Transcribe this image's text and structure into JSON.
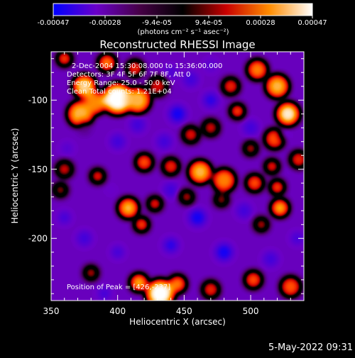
{
  "chart_data": {
    "type": "heatmap",
    "title": "Reconstructed RHESSI Image",
    "xlabel": "Heliocentric X (arcsec)",
    "ylabel": "Heliocentric Y (arcsec)",
    "x_ticks": [
      "350",
      "400",
      "450",
      "500"
    ],
    "y_ticks": [
      "-100",
      "-150",
      "-200"
    ],
    "xlim": [
      350,
      540
    ],
    "ylim": [
      -245,
      -65
    ],
    "colorbar": {
      "ticks": [
        "-0.00047",
        "-0.00028",
        "-9.4e-05",
        "9.4e-05",
        "0.00028",
        "0.00047"
      ],
      "unit_label": "(photons cm⁻² s⁻¹ asec⁻²)",
      "range": [
        -0.00047,
        0.00047
      ],
      "colors": [
        "#0000ff",
        "#6a00c8",
        "#460046",
        "#000000",
        "#c80000",
        "#ff8c00",
        "#ffffff"
      ]
    },
    "annotations": {
      "time": "2-Dec-2004 15:30:08.000 to 15:36:00.000",
      "detectors": "Detectors: 3F 4F 5F 6F 7F 8F, Att 0",
      "energy": "Energy Range: 25.0 - 50.0 keV",
      "clean": "Clean    Total counts: 1.21E+04",
      "peak": "Position of Peak = [426,-237]"
    },
    "peak": [
      426,
      -237
    ],
    "blobs": [
      {
        "x": 375,
        "y": -90,
        "r": 8,
        "v": 0.00043
      },
      {
        "x": 372,
        "y": -110,
        "r": 9,
        "v": 0.0004
      },
      {
        "x": 383,
        "y": -102,
        "r": 8,
        "v": 0.00036
      },
      {
        "x": 400,
        "y": -99,
        "r": 11,
        "v": 0.00047
      },
      {
        "x": 415,
        "y": -100,
        "r": 9,
        "v": 0.0004
      },
      {
        "x": 430,
        "y": -90,
        "r": 7,
        "v": 0.0002
      },
      {
        "x": 392,
        "y": -73,
        "r": 6,
        "v": 0.00035
      },
      {
        "x": 413,
        "y": -77,
        "r": 6,
        "v": 0.00025
      },
      {
        "x": 360,
        "y": -70,
        "r": 5,
        "v": 0.0003
      },
      {
        "x": 505,
        "y": -78,
        "r": 7,
        "v": 0.00035
      },
      {
        "x": 520,
        "y": -90,
        "r": 8,
        "v": 0.0004
      },
      {
        "x": 528,
        "y": -110,
        "r": 8,
        "v": 0.00045
      },
      {
        "x": 518,
        "y": -128,
        "r": 7,
        "v": 0.0003
      },
      {
        "x": 536,
        "y": -143,
        "r": 6,
        "v": 0.00025
      },
      {
        "x": 490,
        "y": -108,
        "r": 5,
        "v": 0.0003
      },
      {
        "x": 485,
        "y": -90,
        "r": 6,
        "v": 0.00025
      },
      {
        "x": 470,
        "y": -120,
        "r": 6,
        "v": 0.0002
      },
      {
        "x": 455,
        "y": -125,
        "r": 6,
        "v": 0.00022
      },
      {
        "x": 500,
        "y": -135,
        "r": 5,
        "v": 0.0002
      },
      {
        "x": 420,
        "y": -145,
        "r": 6,
        "v": 0.0003
      },
      {
        "x": 440,
        "y": -148,
        "r": 6,
        "v": 0.00025
      },
      {
        "x": 462,
        "y": -152,
        "r": 8,
        "v": 0.0004
      },
      {
        "x": 480,
        "y": -158,
        "r": 8,
        "v": 0.00035
      },
      {
        "x": 503,
        "y": -160,
        "r": 6,
        "v": 0.0003
      },
      {
        "x": 516,
        "y": -148,
        "r": 5,
        "v": 0.00025
      },
      {
        "x": 452,
        "y": -170,
        "r": 5,
        "v": 0.0002
      },
      {
        "x": 478,
        "y": -172,
        "r": 5,
        "v": 0.00018
      },
      {
        "x": 385,
        "y": -155,
        "r": 5,
        "v": 0.00025
      },
      {
        "x": 360,
        "y": -150,
        "r": 6,
        "v": 0.0002
      },
      {
        "x": 357,
        "y": -165,
        "r": 5,
        "v": 0.00018
      },
      {
        "x": 408,
        "y": -178,
        "r": 7,
        "v": 0.0004
      },
      {
        "x": 428,
        "y": -175,
        "r": 5,
        "v": 0.00025
      },
      {
        "x": 418,
        "y": -190,
        "r": 5,
        "v": 0.0003
      },
      {
        "x": 508,
        "y": -190,
        "r": 5,
        "v": 0.0002
      },
      {
        "x": 522,
        "y": -178,
        "r": 6,
        "v": 0.0004
      },
      {
        "x": 520,
        "y": -163,
        "r": 5,
        "v": 0.0003
      },
      {
        "x": 432,
        "y": -240,
        "r": 10,
        "v": 0.00047
      },
      {
        "x": 416,
        "y": -232,
        "r": 6,
        "v": 0.0004
      },
      {
        "x": 445,
        "y": -233,
        "r": 6,
        "v": 0.00035
      },
      {
        "x": 470,
        "y": -237,
        "r": 6,
        "v": 0.00025
      },
      {
        "x": 502,
        "y": -230,
        "r": 6,
        "v": 0.0003
      },
      {
        "x": 530,
        "y": -235,
        "r": 7,
        "v": 0.0003
      },
      {
        "x": 380,
        "y": -225,
        "r": 5,
        "v": 0.0002
      },
      {
        "x": 375,
        "y": -120,
        "r": 5,
        "v": -0.00012
      },
      {
        "x": 415,
        "y": -118,
        "r": 6,
        "v": -0.0003
      },
      {
        "x": 445,
        "y": -110,
        "r": 7,
        "v": -0.0004
      },
      {
        "x": 470,
        "y": -100,
        "r": 6,
        "v": -0.00035
      },
      {
        "x": 500,
        "y": -120,
        "r": 6,
        "v": -0.0003
      },
      {
        "x": 525,
        "y": -125,
        "r": 4,
        "v": -0.00022
      },
      {
        "x": 455,
        "y": -85,
        "r": 6,
        "v": -0.0003
      },
      {
        "x": 470,
        "y": -75,
        "r": 5,
        "v": -0.00025
      },
      {
        "x": 440,
        "y": -80,
        "r": 5,
        "v": -0.00028
      },
      {
        "x": 400,
        "y": -130,
        "r": 6,
        "v": -0.0003
      },
      {
        "x": 435,
        "y": -130,
        "r": 6,
        "v": -0.0003
      },
      {
        "x": 362,
        "y": -135,
        "r": 5,
        "v": -0.00025
      },
      {
        "x": 440,
        "y": -165,
        "r": 6,
        "v": -0.0003
      },
      {
        "x": 460,
        "y": -185,
        "r": 7,
        "v": -0.0004
      },
      {
        "x": 495,
        "y": -180,
        "r": 6,
        "v": -0.0003
      },
      {
        "x": 535,
        "y": -200,
        "r": 5,
        "v": -0.0003
      },
      {
        "x": 375,
        "y": -200,
        "r": 6,
        "v": -0.0003
      },
      {
        "x": 400,
        "y": -210,
        "r": 5,
        "v": -0.0003
      },
      {
        "x": 440,
        "y": -205,
        "r": 6,
        "v": -0.00035
      },
      {
        "x": 480,
        "y": -210,
        "r": 7,
        "v": -0.0004
      },
      {
        "x": 515,
        "y": -215,
        "r": 6,
        "v": -0.0003
      },
      {
        "x": 390,
        "y": -240,
        "r": 5,
        "v": -0.0003
      },
      {
        "x": 360,
        "y": -185,
        "r": 5,
        "v": -0.0003
      },
      {
        "x": 530,
        "y": -150,
        "r": 3,
        "v": -0.0002
      },
      {
        "x": 538,
        "y": -70,
        "r": 4,
        "v": -0.00018
      },
      {
        "x": 395,
        "y": -165,
        "r": 4,
        "v": -0.0002
      }
    ]
  },
  "footer": {
    "timestamp": "5-May-2022 09:31"
  }
}
